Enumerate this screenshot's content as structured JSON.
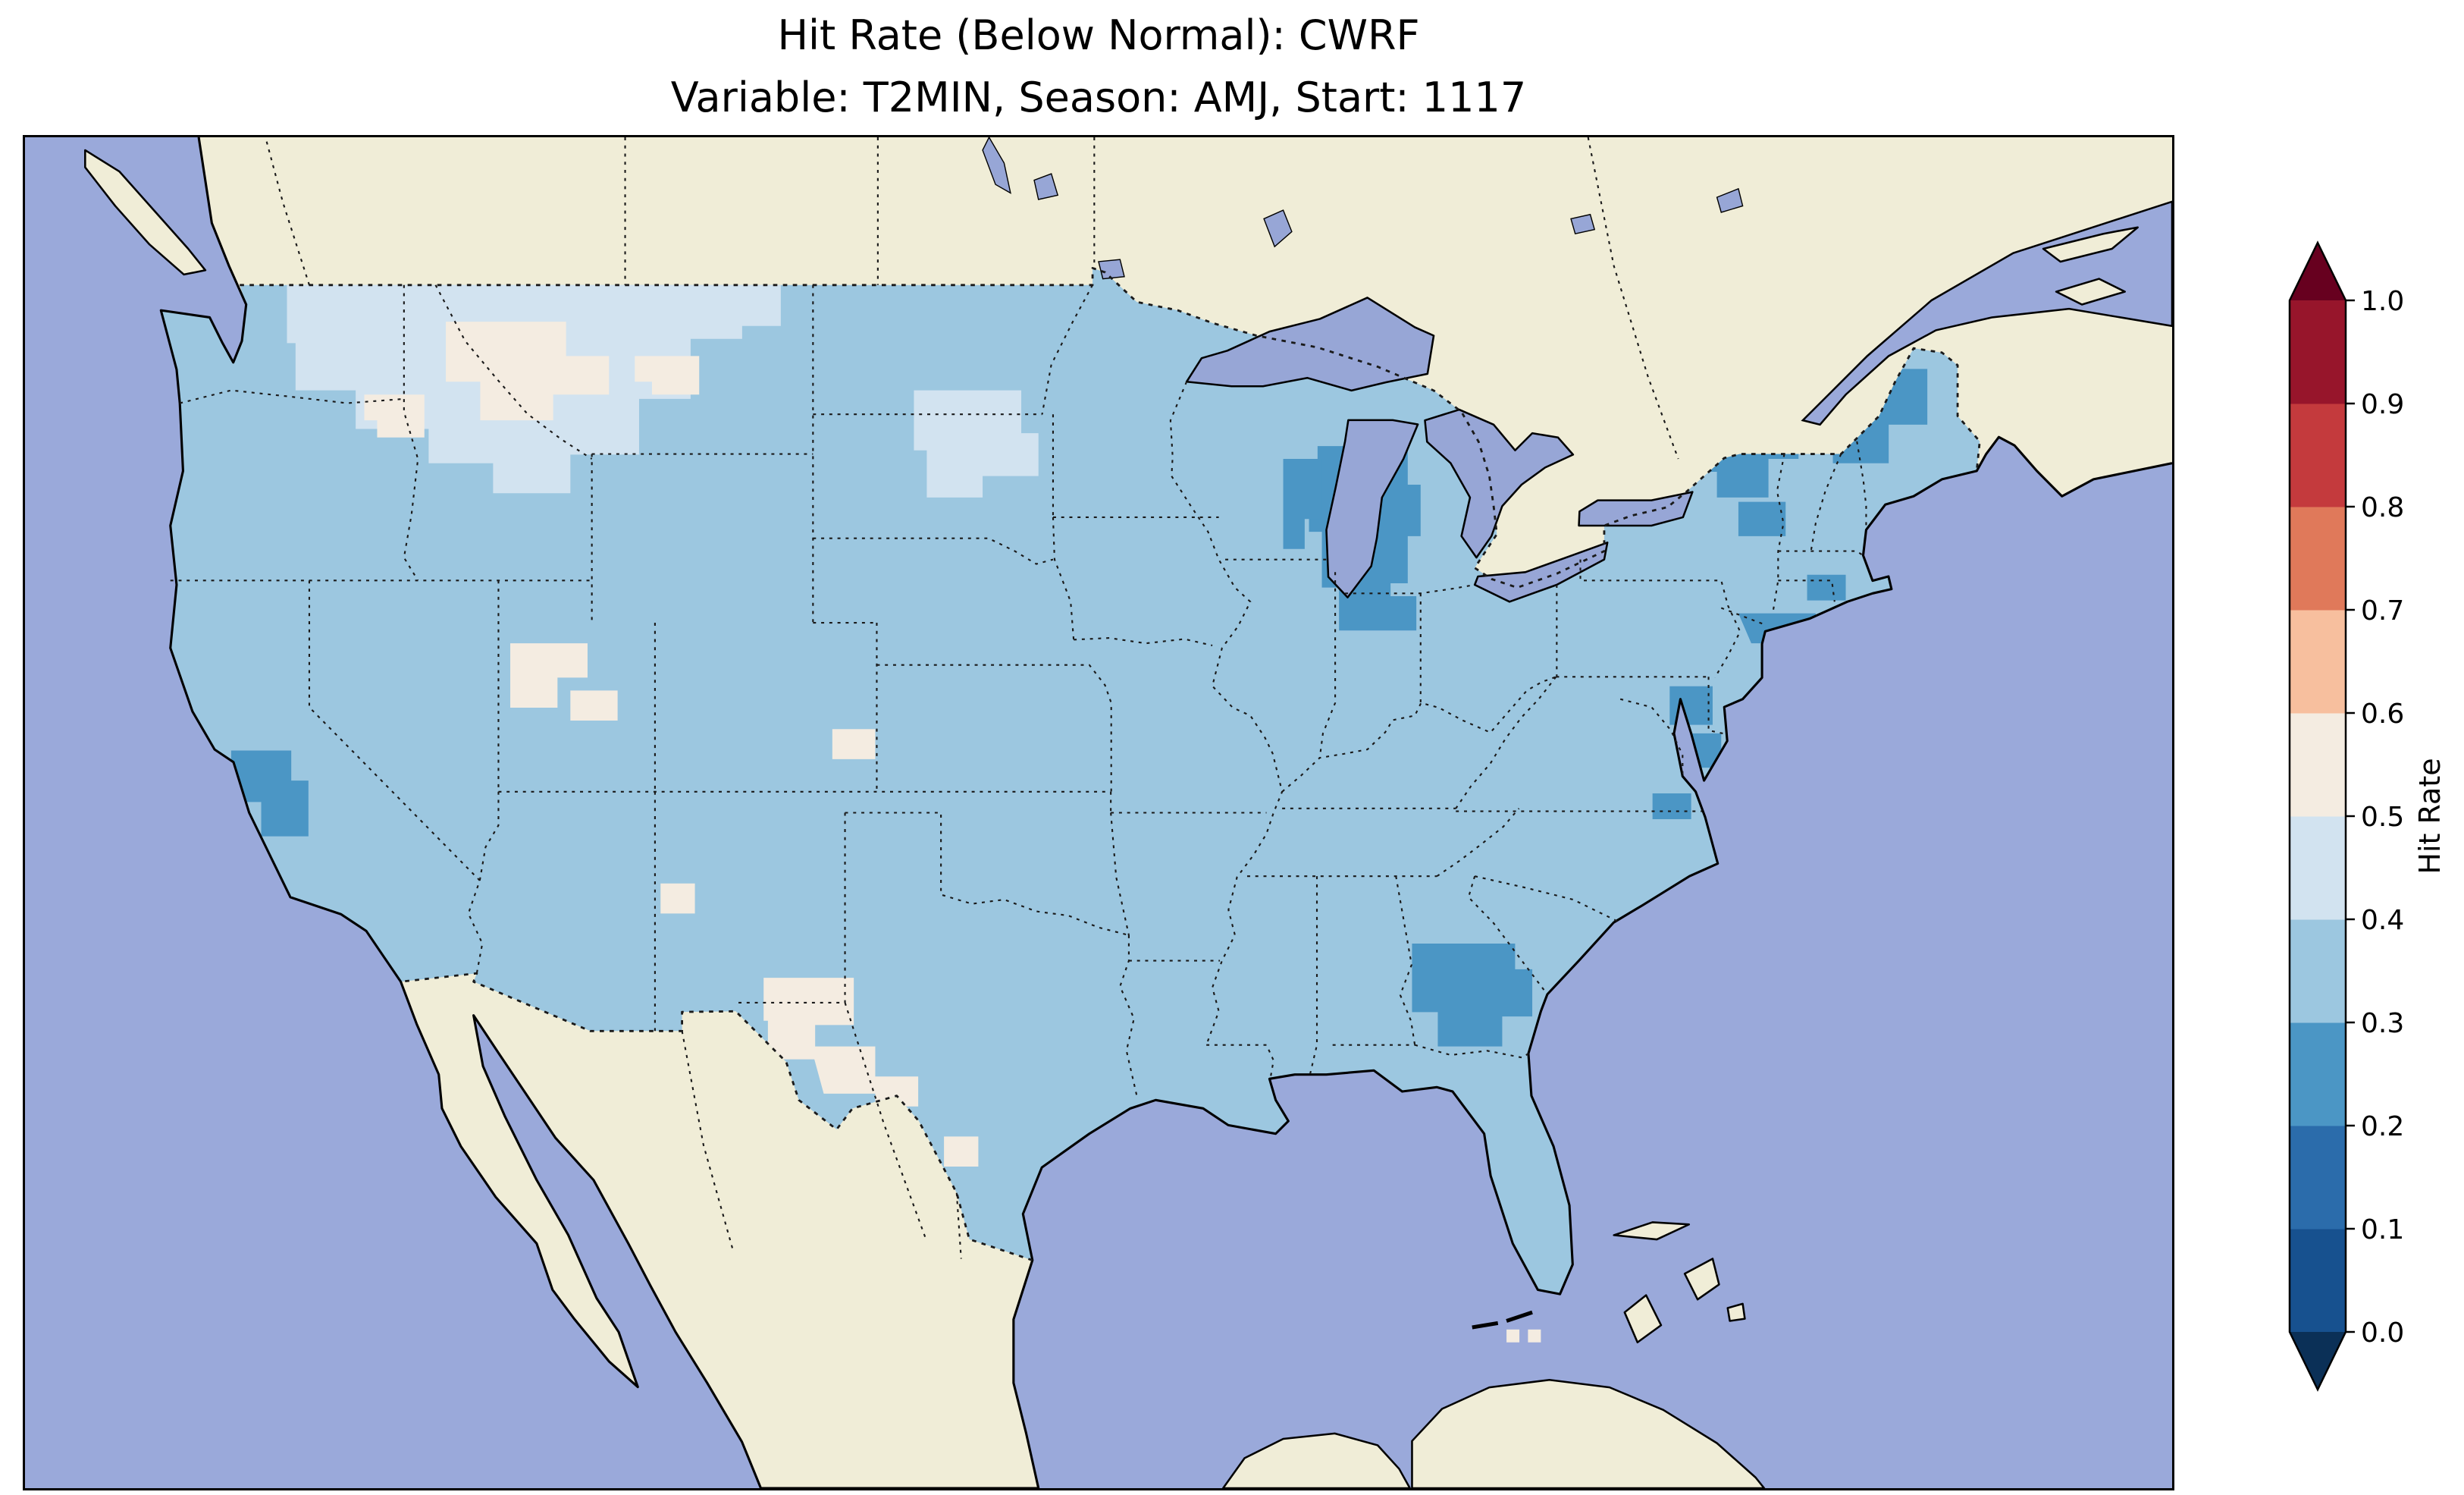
{
  "figure": {
    "title_line1": "Hit Rate (Below Normal): CWRF",
    "title_line2": "Variable: T2MIN, Season: AMJ, Start: 1117"
  },
  "colorbar": {
    "label": "Hit Rate",
    "ticks": [
      "0.0",
      "0.1",
      "0.2",
      "0.3",
      "0.4",
      "0.5",
      "0.6",
      "0.7",
      "0.8",
      "0.9",
      "1.0"
    ],
    "segments": [
      "#17518f",
      "#2b6cab",
      "#4b96c5",
      "#9cc7e0",
      "#d2e3f0",
      "#f4ece1",
      "#f7bf9e",
      "#e0795a",
      "#c43a3d",
      "#97152b"
    ],
    "under_color": "#0b3057",
    "over_color": "#67001f"
  },
  "map": {
    "palette": {
      "ocean": "#9aa9da",
      "land": "#f0edd7",
      "lake": "#97a6d6",
      "hit_base": "#9cc7e0",
      "hit_light": "#d2e3f0",
      "hit_pale": "#f4ece1",
      "hit_dark": "#4b96c5",
      "coastline": "#000000"
    }
  },
  "chart_data": {
    "type": "heatmap",
    "title": "Hit Rate (Below Normal): CWRF",
    "subtitle": "Variable: T2MIN, Season: AMJ, Start: 1117",
    "colorbar_label": "Hit Rate",
    "colorbar_ticks": [
      0.0,
      0.1,
      0.2,
      0.3,
      0.4,
      0.5,
      0.6,
      0.7,
      0.8,
      0.9,
      1.0
    ],
    "colormap": "RdBu_r, 10 discrete bins with under/over arrow extensions",
    "region": "Continental United States, gridded model cells over a Plate-Carree style basemap",
    "observed_value_range": [
      0.2,
      0.6
    ],
    "regional_values": [
      {
        "region": "Most of the continental US",
        "hit_rate": 0.35
      },
      {
        "region": "Eastern Washington / Idaho / western Montana",
        "hit_rate": 0.45
      },
      {
        "region": "Montana high-plains patches",
        "hit_rate": 0.55
      },
      {
        "region": "Wyoming-Utah border patches",
        "hit_rate": 0.55
      },
      {
        "region": "Central Kansas patch",
        "hit_rate": 0.55
      },
      {
        "region": "West Texas patches",
        "hit_rate": 0.55
      },
      {
        "region": "Eastern Dakotas patch",
        "hit_rate": 0.45
      },
      {
        "region": "Lower Michigan / Lake Michigan shore",
        "hit_rate": 0.25
      },
      {
        "region": "Upstate New York / Vermont / New Hampshire / Maine",
        "hit_rate": 0.25
      },
      {
        "region": "New York City / Long Island",
        "hit_rate": 0.25
      },
      {
        "region": "Chesapeake Bay / Delmarva",
        "hit_rate": 0.25
      },
      {
        "region": "Southeast Virginia",
        "hit_rate": 0.25
      },
      {
        "region": "Central Georgia",
        "hit_rate": 0.25
      },
      {
        "region": "Central California",
        "hit_rate": 0.25
      }
    ]
  }
}
